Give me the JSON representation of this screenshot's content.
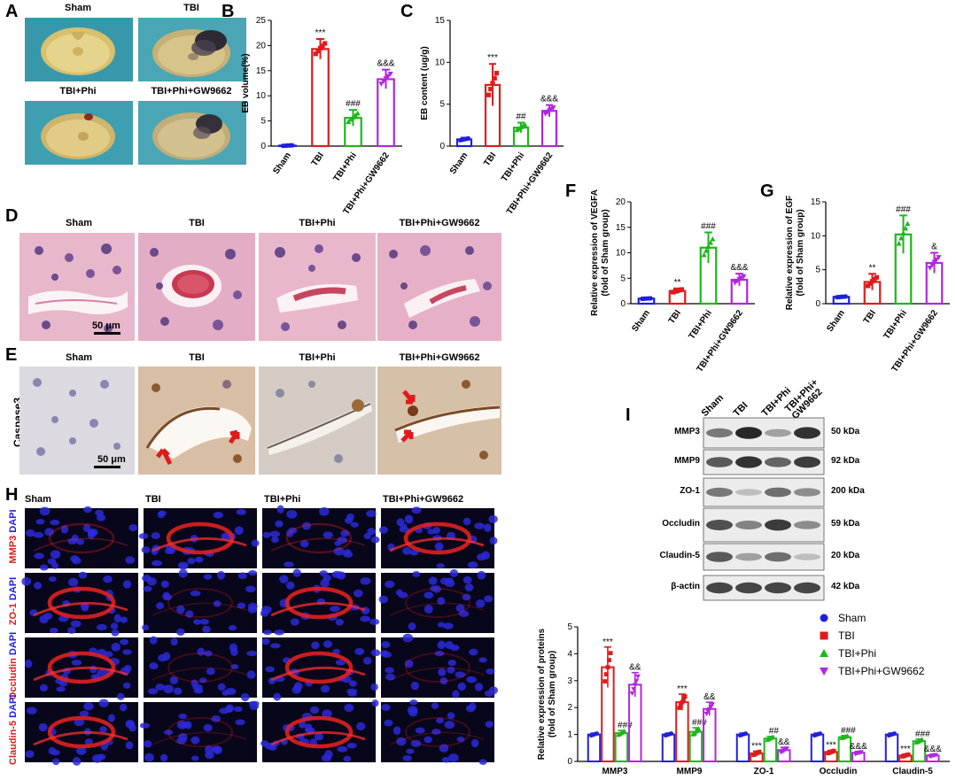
{
  "panel_letters": {
    "A": "A",
    "B": "B",
    "C": "C",
    "D": "D",
    "E": "E",
    "F": "F",
    "G": "G",
    "H": "H",
    "I": "I"
  },
  "groups": [
    "Sham",
    "TBI",
    "TBI+Phi",
    "TBI+Phi+GW9662"
  ],
  "colors": {
    "Sham": "#1f1fe0",
    "TBI": "#e01b1b",
    "TBI+Phi": "#1db71d",
    "TBI+Phi+GW9662": "#b126e0"
  },
  "panel_A": {
    "labels": [
      "Sham",
      "TBI",
      "TBI+Phi",
      "TBI+Phi+GW9662"
    ]
  },
  "panel_D": {
    "labels": [
      "Sham",
      "TBI",
      "TBI+Phi",
      "TBI+Phi+GW9662"
    ],
    "scale_bar": "50 μm"
  },
  "panel_E": {
    "labels": [
      "Sham",
      "TBI",
      "TBI+Phi",
      "TBI+Phi+GW9662"
    ],
    "row_label": "Caspase3",
    "scale_bar": "50 μm"
  },
  "panel_H": {
    "col_labels": [
      "Sham",
      "TBI",
      "TBI+Phi",
      "TBI+Phi+GW9662"
    ],
    "rows": [
      {
        "marker": "MMP3",
        "stain": "DAPI"
      },
      {
        "marker": "ZO-1",
        "stain": "DAPI"
      },
      {
        "marker": "Occludin",
        "stain": "DAPI"
      },
      {
        "marker": "Claudin-5",
        "stain": "DAPI"
      }
    ]
  },
  "panel_I": {
    "lane_labels": [
      "Sham",
      "TBI",
      "TBI+Phi",
      "TBI+Phi+\nGW9662"
    ],
    "bands": [
      {
        "protein": "MMP3",
        "size": "50 kDa"
      },
      {
        "protein": "MMP9",
        "size": "92 kDa"
      },
      {
        "protein": "ZO-1",
        "size": "200 kDa"
      },
      {
        "protein": "Occludin",
        "size": "59 kDa"
      },
      {
        "protein": "Claudin-5",
        "size": "20 kDa"
      },
      {
        "protein": "β-actin",
        "size": "42 kDa"
      }
    ]
  },
  "chart_data": [
    {
      "id": "B",
      "type": "bar",
      "title": "",
      "xlabel": "",
      "ylabel": "EB volume(%)",
      "ylim": [
        0,
        25
      ],
      "yticks": [
        0,
        5,
        10,
        15,
        20,
        25
      ],
      "categories": [
        "Sham",
        "TBI",
        "TBI+Phi",
        "TBI+Phi+GW9662"
      ],
      "values": [
        0.1,
        19.3,
        5.6,
        13.3
      ],
      "errors": [
        0.1,
        2.0,
        1.6,
        1.9
      ],
      "annotations": [
        "",
        "***",
        "###",
        "&&&"
      ]
    },
    {
      "id": "C",
      "type": "bar",
      "title": "",
      "xlabel": "",
      "ylabel": "EB content (ug/g)",
      "ylim": [
        0,
        15
      ],
      "yticks": [
        0,
        5,
        10,
        15
      ],
      "categories": [
        "Sham",
        "TBI",
        "TBI+Phi",
        "TBI+Phi+GW9662"
      ],
      "values": [
        0.8,
        7.3,
        2.2,
        4.2
      ],
      "errors": [
        0.2,
        2.5,
        0.6,
        0.7
      ],
      "annotations": [
        "",
        "***",
        "##",
        "&&&"
      ]
    },
    {
      "id": "F",
      "type": "bar",
      "title": "",
      "xlabel": "",
      "ylabel": "Relative expression of VEGFA\n(fold of Sham group)",
      "ylim": [
        0,
        20
      ],
      "yticks": [
        0,
        5,
        10,
        15,
        20
      ],
      "categories": [
        "Sham",
        "TBI",
        "TBI+Phi",
        "TBI+Phi+GW9662"
      ],
      "values": [
        1.0,
        2.5,
        11.0,
        4.7
      ],
      "errors": [
        0.1,
        0.5,
        3.0,
        1.2
      ],
      "annotations": [
        "",
        "**",
        "###",
        "&&&"
      ]
    },
    {
      "id": "G",
      "type": "bar",
      "title": "",
      "xlabel": "",
      "ylabel": "Relative expression of EGF\n(fold of Sham group)",
      "ylim": [
        0,
        15
      ],
      "yticks": [
        0,
        5,
        10,
        15
      ],
      "categories": [
        "Sham",
        "TBI",
        "TBI+Phi",
        "TBI+Phi+GW9662"
      ],
      "values": [
        1.0,
        3.2,
        10.2,
        6.0
      ],
      "errors": [
        0.1,
        1.2,
        2.8,
        1.5
      ],
      "annotations": [
        "",
        "**",
        "###",
        "&"
      ]
    },
    {
      "id": "I_quant",
      "type": "bar",
      "title": "",
      "xlabel": "",
      "ylabel": "Relative expression of proteins\n(fold of Sham group)",
      "ylim": [
        0,
        5
      ],
      "yticks": [
        0,
        1,
        2,
        3,
        4,
        5
      ],
      "categories": [
        "MMP3",
        "MMP9",
        "ZO-1",
        "Occludin",
        "Claudin-5"
      ],
      "legend_position": "top-right",
      "series": [
        {
          "name": "Sham",
          "values": [
            1.0,
            1.0,
            1.0,
            1.0,
            1.0
          ],
          "errors": [
            0.05,
            0.05,
            0.05,
            0.05,
            0.05
          ],
          "annotations": [
            "",
            "",
            "",
            "",
            ""
          ]
        },
        {
          "name": "TBI",
          "values": [
            3.5,
            2.2,
            0.3,
            0.35,
            0.22
          ],
          "errors": [
            0.75,
            0.3,
            0.08,
            0.06,
            0.05
          ],
          "annotations": [
            "***",
            "***",
            "***",
            "***",
            "***"
          ]
        },
        {
          "name": "TBI+Phi",
          "values": [
            1.05,
            1.1,
            0.85,
            0.9,
            0.75
          ],
          "errors": [
            0.1,
            0.15,
            0.08,
            0.06,
            0.08
          ],
          "annotations": [
            "###",
            "###",
            "##",
            "###",
            "###"
          ]
        },
        {
          "name": "TBI+Phi+GW9662",
          "values": [
            2.85,
            1.95,
            0.42,
            0.32,
            0.22
          ],
          "errors": [
            0.45,
            0.25,
            0.1,
            0.05,
            0.04
          ],
          "annotations": [
            "&&",
            "&&",
            "&&",
            "&&&",
            "&&&"
          ]
        }
      ]
    }
  ]
}
